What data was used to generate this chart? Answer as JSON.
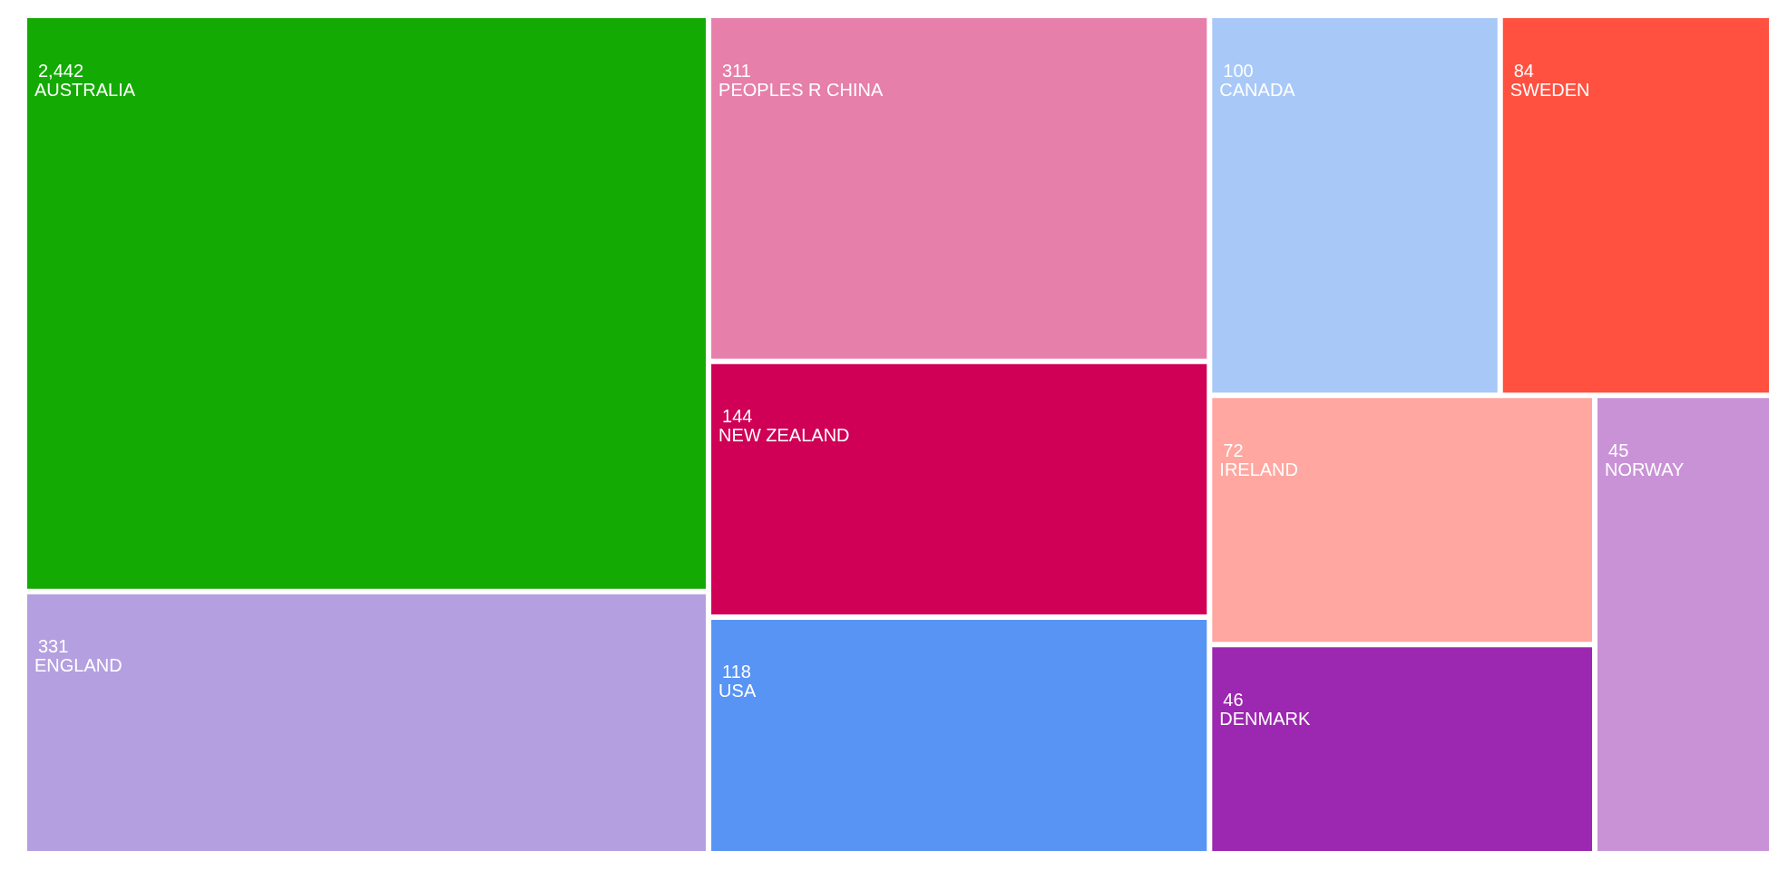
{
  "chart_data": {
    "type": "other",
    "categories": [
      "AUSTRALIA",
      "ENGLAND",
      "PEOPLES R CHINA",
      "NEW ZEALAND",
      "USA",
      "CANADA",
      "SWEDEN",
      "IRELAND",
      "DENMARK",
      "NORWAY"
    ],
    "values": [
      2442,
      331,
      311,
      144,
      118,
      100,
      84,
      72,
      46,
      45
    ],
    "colors": [
      "#14aa04",
      "#b49fe0",
      "#e67faa",
      "#cf0055",
      "#5894f4",
      "#a8c8f8",
      "#ff5040",
      "#ffa7a0",
      "#9c27b0",
      "#c992d6"
    ],
    "value_labels": [
      "2,442",
      "331",
      "311",
      "144",
      "118",
      "100",
      "84",
      "72",
      "46",
      "45"
    ]
  }
}
